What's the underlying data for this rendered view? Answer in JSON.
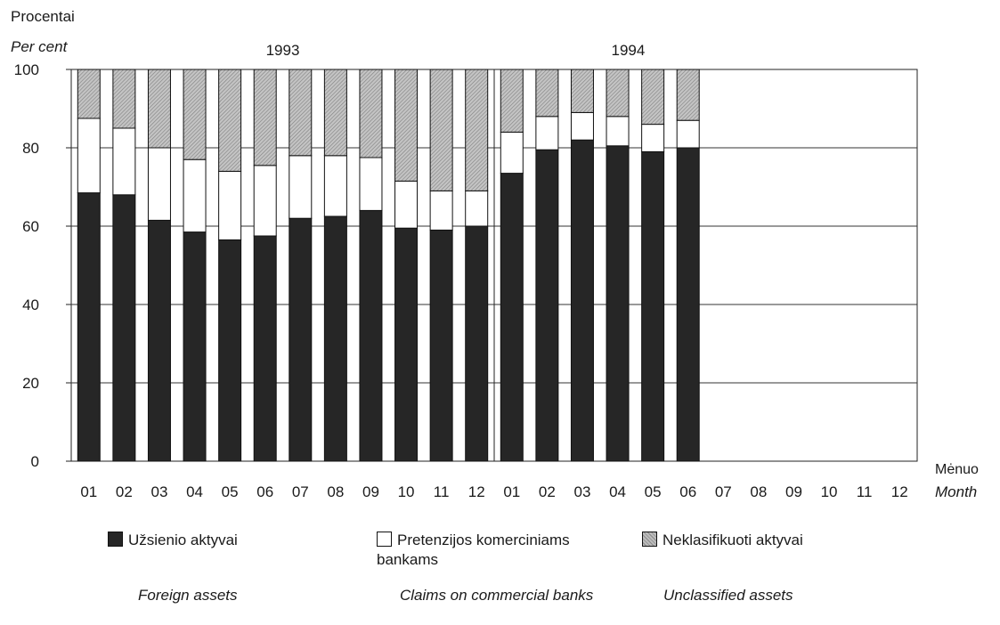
{
  "chart_data": {
    "type": "bar",
    "stacked": true,
    "y_title_lt": "Procentai",
    "y_title_en": "Per cent",
    "x_title_lt": "Mėnuo",
    "x_title_en": "Month",
    "ylim": [
      0,
      100
    ],
    "y_ticks": [
      0,
      20,
      40,
      60,
      80,
      100
    ],
    "grid": true,
    "year_labels": [
      "1993",
      "1994"
    ],
    "categories": [
      "01",
      "02",
      "03",
      "04",
      "05",
      "06",
      "07",
      "08",
      "09",
      "10",
      "11",
      "12",
      "01",
      "02",
      "03",
      "04",
      "05",
      "06",
      "07",
      "08",
      "09",
      "10",
      "11",
      "12"
    ],
    "series": [
      {
        "name": "Užsienio aktyvai",
        "name_en": "Foreign assets",
        "color": "#262626",
        "values": [
          68.5,
          68,
          61.5,
          58.5,
          56.5,
          57.5,
          62,
          62.5,
          64,
          59.5,
          59,
          60,
          73.5,
          79.5,
          82,
          80.5,
          79,
          80,
          null,
          null,
          null,
          null,
          null,
          null
        ]
      },
      {
        "name": "Pretenzijos komerciniams bankams",
        "name_en": "Claims on commercial banks",
        "color": "#ffffff",
        "values": [
          19,
          17,
          18.5,
          18.5,
          17.5,
          18,
          16,
          15.5,
          13.5,
          12,
          10,
          9,
          10.5,
          8.5,
          7,
          7.5,
          7,
          7,
          null,
          null,
          null,
          null,
          null,
          null
        ]
      },
      {
        "name": "Neklasifikuoti aktyvai",
        "name_en": "Unclassified assets",
        "color": "#a8a8a8",
        "values": [
          12.5,
          15,
          20,
          23,
          26,
          24.5,
          22,
          22,
          22.5,
          28.5,
          31,
          31,
          16,
          12,
          11,
          12,
          14,
          13,
          null,
          null,
          null,
          null,
          null,
          null
        ]
      }
    ]
  },
  "legend": {
    "foreign_lt": "Užsienio aktyvai",
    "claims_lt": "Pretenzijos komerciniams bankams",
    "unclassified_lt": "Neklasifikuoti aktyvai",
    "foreign_en": "Foreign assets",
    "claims_en": "Claims on commercial banks",
    "unclassified_en": "Unclassified assets"
  }
}
